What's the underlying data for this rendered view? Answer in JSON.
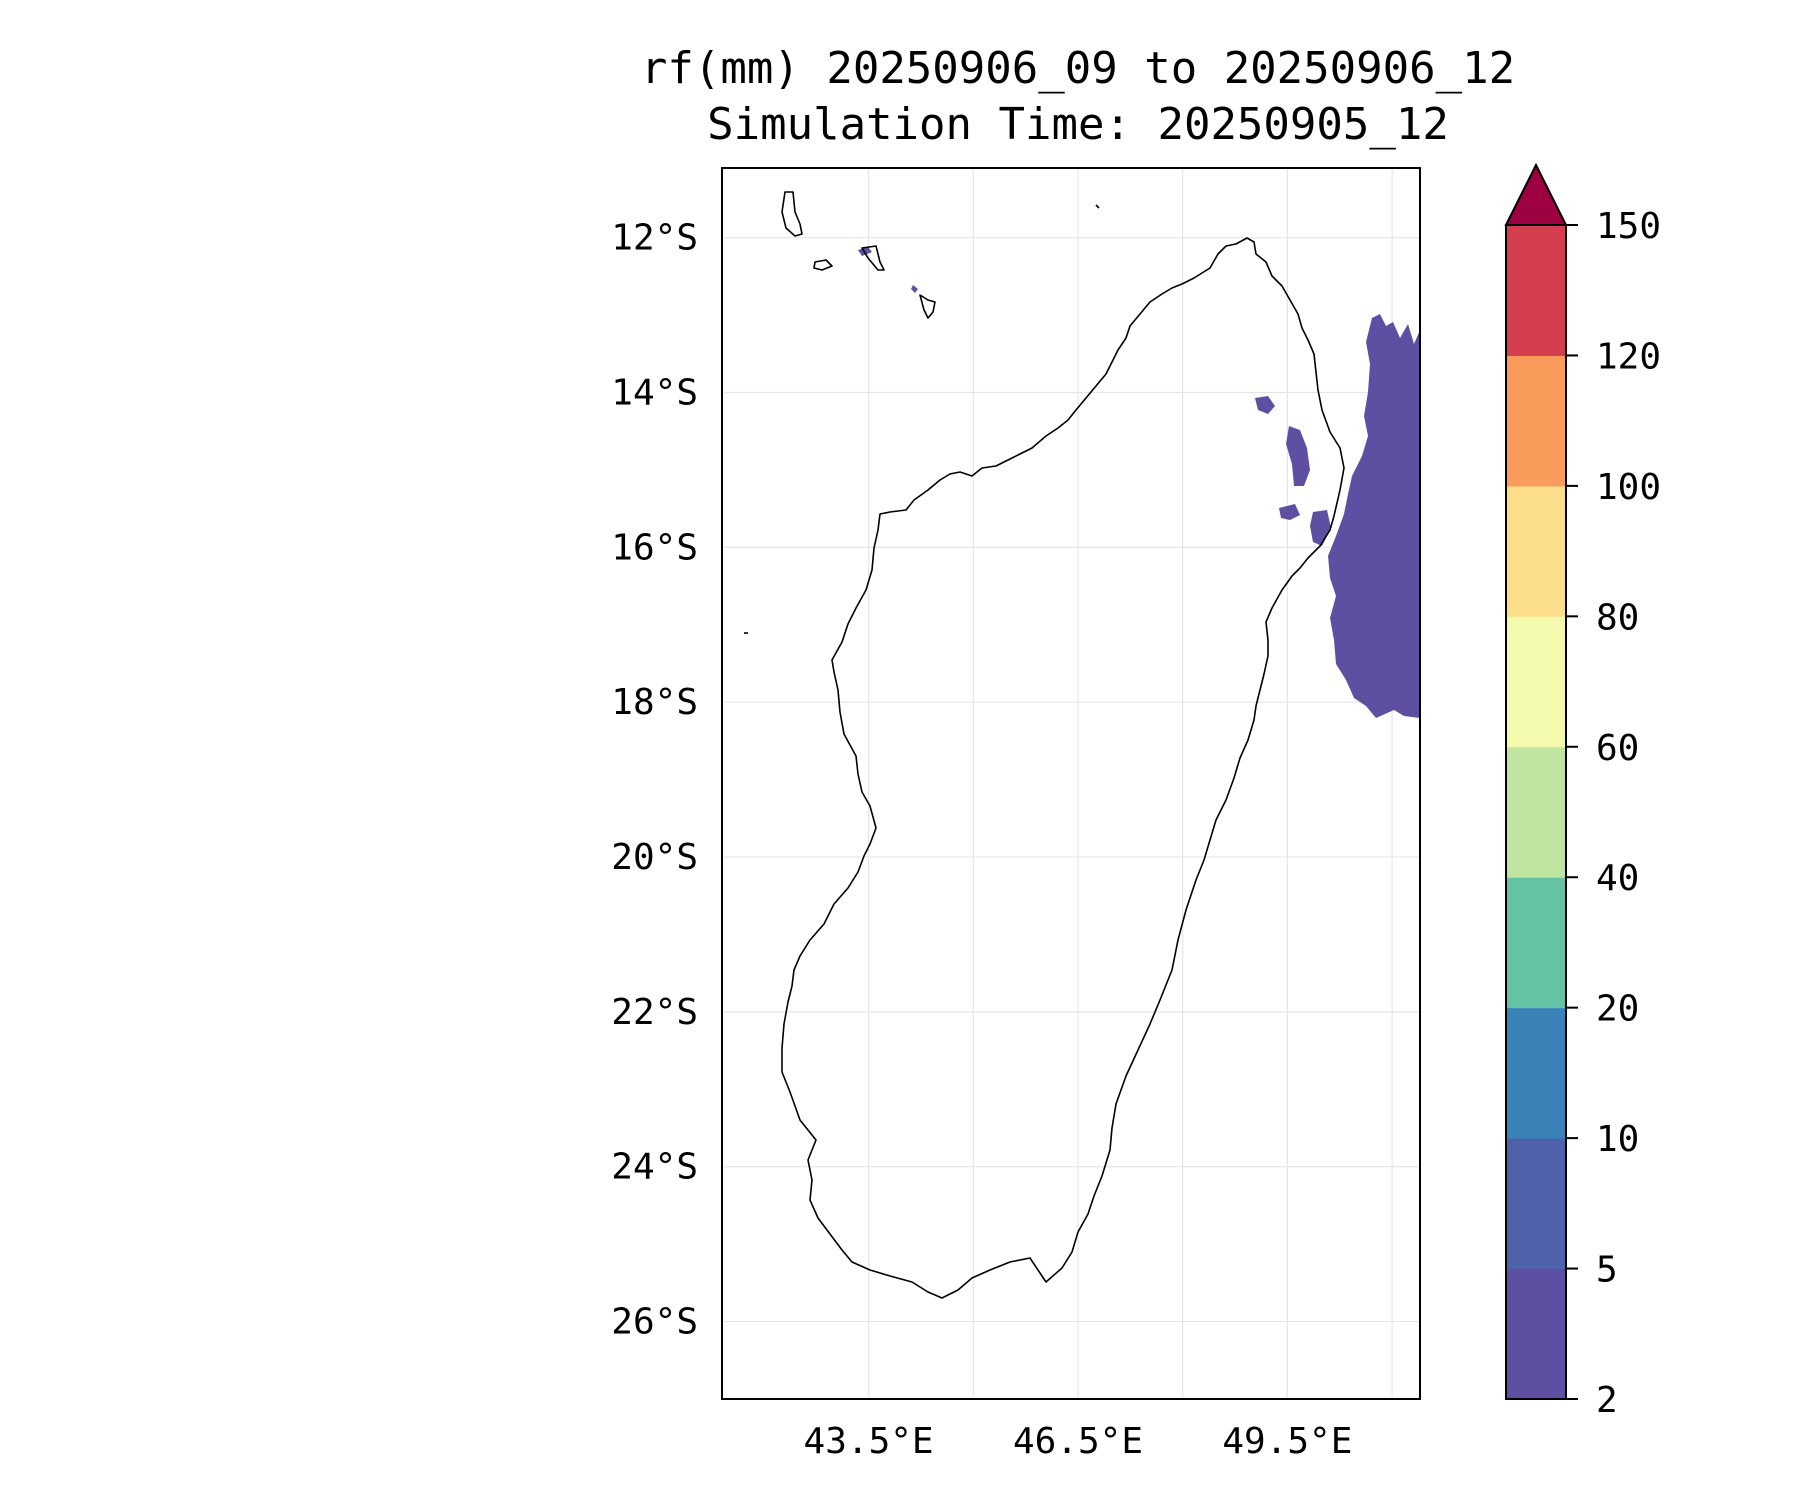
{
  "title": {
    "line1": "rf(mm) 20250906_09 to 20250906_12",
    "line2": "Simulation Time: 20250905_12"
  },
  "map": {
    "lon_range": [
      41.4,
      51.4
    ],
    "lat_range": [
      -27.0,
      -11.1
    ],
    "lat_ticks": [
      {
        "value": -12,
        "label": "12°S"
      },
      {
        "value": -14,
        "label": "14°S"
      },
      {
        "value": -16,
        "label": "16°S"
      },
      {
        "value": -18,
        "label": "18°S"
      },
      {
        "value": -20,
        "label": "20°S"
      },
      {
        "value": -22,
        "label": "22°S"
      },
      {
        "value": -24,
        "label": "24°S"
      },
      {
        "value": -26,
        "label": "26°S"
      }
    ],
    "lon_ticks": [
      {
        "value": 43.5,
        "label": "43.5°E"
      },
      {
        "value": 46.5,
        "label": "46.5°E"
      },
      {
        "value": 49.5,
        "label": "49.5°E"
      }
    ],
    "minor_lon_gridlines": [
      45.0,
      48.0,
      51.0
    ],
    "coastline_color": "#000000",
    "rain_color": "#5e4fa2",
    "gridline_color": "#e6e6e6"
  },
  "colorbar": {
    "levels": [
      "2",
      "5",
      "10",
      "20",
      "40",
      "60",
      "80",
      "100",
      "120",
      "150"
    ],
    "colors": [
      "#5e4fa2",
      "#4f61aa",
      "#3a83b9",
      "#66c2a5",
      "#bfe5a0",
      "#f3faad",
      "#fddf8b",
      "#f99b5a",
      "#d53e4f"
    ],
    "extend_color": "#9e0142",
    "extend": "max"
  }
}
